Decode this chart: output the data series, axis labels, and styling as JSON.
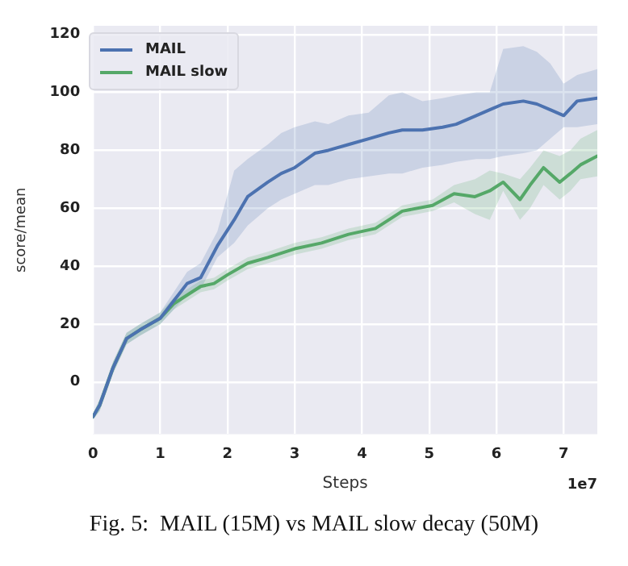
{
  "chart_data": {
    "type": "line",
    "xlabel": "Steps",
    "ylabel": "score/mean",
    "xlim": [
      0,
      7.5
    ],
    "xticks": [
      0,
      1,
      2,
      3,
      4,
      5,
      6,
      7
    ],
    "ylim": [
      -18,
      123
    ],
    "yticks": [
      0,
      20,
      40,
      60,
      80,
      100,
      120
    ],
    "grid": true,
    "legend": "top left",
    "marker": "none",
    "line_style": "solid",
    "annotations": [
      "1e7",
      "Fig. 5:  MAIL (15M) vs MAIL slow decay (50M)"
    ],
    "series": [
      {
        "name": "MAIL",
        "color": "#4c72b0",
        "x": [
          0,
          0.1,
          0.3,
          0.5,
          0.7,
          1.0,
          1.2,
          1.4,
          1.6,
          1.85,
          2.1,
          2.3,
          2.6,
          2.8,
          3.0,
          3.3,
          3.5,
          3.8,
          4.1,
          4.4,
          4.6,
          4.9,
          5.2,
          5.4,
          5.7,
          5.9,
          6.1,
          6.4,
          6.6,
          6.8,
          7.0,
          7.2,
          7.5
        ],
        "values": [
          -12,
          -8,
          5,
          15,
          18,
          22,
          28,
          34,
          36,
          47,
          56,
          64,
          69,
          72,
          74,
          79,
          80,
          82,
          84,
          86,
          87,
          87,
          88,
          89,
          92,
          94,
          96,
          97,
          96,
          94,
          92,
          97,
          98
        ],
        "lower": [
          -13,
          -10,
          3,
          13,
          16,
          20,
          25,
          30,
          32,
          43,
          48,
          54,
          60,
          63,
          65,
          68,
          68,
          70,
          71,
          72,
          72,
          74,
          75,
          76,
          77,
          77,
          78,
          79,
          80,
          84,
          88,
          88,
          89
        ],
        "upper": [
          -11,
          -6,
          7,
          17,
          20,
          24,
          31,
          38,
          41,
          52,
          73,
          77,
          82,
          86,
          88,
          90,
          89,
          92,
          93,
          99,
          100,
          97,
          98,
          99,
          100,
          100,
          115,
          116,
          114,
          110,
          103,
          106,
          108
        ]
      },
      {
        "name": "MAIL slow",
        "color": "#55a868",
        "x": [
          0,
          0.1,
          0.3,
          0.5,
          0.7,
          1.0,
          1.2,
          1.4,
          1.6,
          1.8,
          2.0,
          2.3,
          2.6,
          3.0,
          3.4,
          3.8,
          4.2,
          4.6,
          5.05,
          5.37,
          5.68,
          5.9,
          6.1,
          6.35,
          6.5,
          6.7,
          6.94,
          7.1,
          7.25,
          7.5
        ],
        "values": [
          -12,
          -8,
          5,
          15,
          18,
          22,
          27,
          30,
          33,
          34,
          37,
          41,
          43,
          46,
          48,
          51,
          53,
          59,
          61,
          65,
          64,
          66,
          69,
          63,
          68,
          74,
          69,
          72,
          75,
          78
        ],
        "lower": [
          -13,
          -10,
          3,
          13,
          16,
          20,
          25,
          28,
          31,
          32,
          35,
          39,
          41,
          44,
          46,
          49,
          51,
          57,
          59,
          62,
          58,
          56,
          66,
          56,
          60,
          68,
          63,
          66,
          70,
          71
        ],
        "upper": [
          -11,
          -6,
          7,
          17,
          20,
          24,
          29,
          32,
          35,
          36,
          39,
          43,
          45,
          48,
          50,
          53,
          55,
          61,
          63,
          68,
          70,
          73,
          72,
          70,
          74,
          80,
          78,
          80,
          84,
          87
        ]
      }
    ]
  }
}
